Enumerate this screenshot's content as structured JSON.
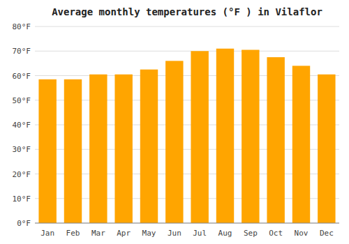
{
  "chart_data": {
    "type": "bar",
    "title": "Average monthly temperatures (°F ) in Vilaflor",
    "categories": [
      "Jan",
      "Feb",
      "Mar",
      "Apr",
      "May",
      "Jun",
      "Jul",
      "Aug",
      "Sep",
      "Oct",
      "Nov",
      "Dec"
    ],
    "values": [
      58.5,
      58.5,
      60.5,
      60.5,
      62.5,
      66.0,
      70.0,
      71.0,
      70.5,
      67.5,
      64.0,
      60.5
    ],
    "color": "#FFA500",
    "ylim": [
      0,
      80
    ],
    "yticks": [
      {
        "value": 0,
        "label": "0°F"
      },
      {
        "value": 10,
        "label": "10°F"
      },
      {
        "value": 20,
        "label": "20°F"
      },
      {
        "value": 30,
        "label": "30°F"
      },
      {
        "value": 40,
        "label": "40°F"
      },
      {
        "value": 50,
        "label": "50°F"
      },
      {
        "value": 60,
        "label": "60°F"
      },
      {
        "value": 70,
        "label": "70°F"
      },
      {
        "value": 80,
        "label": "80°F"
      }
    ],
    "grid": true
  }
}
